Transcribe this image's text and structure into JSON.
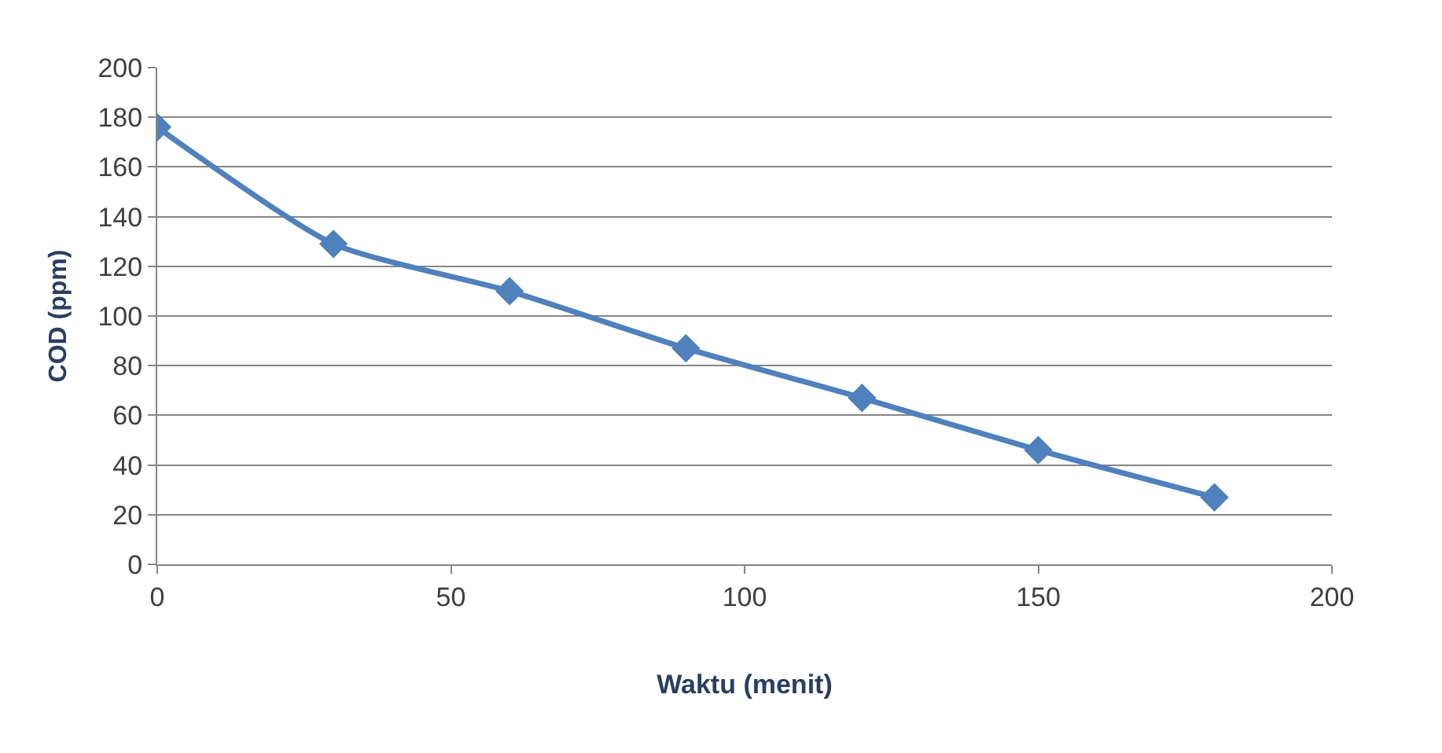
{
  "chart_data": {
    "type": "line",
    "xlabel": "Waktu (menit)",
    "ylabel": "COD (ppm)",
    "x": [
      0,
      30,
      60,
      90,
      120,
      150,
      180
    ],
    "series": [
      {
        "color": "#4f81bd",
        "values": [
          176,
          129,
          110,
          87,
          67,
          46,
          27
        ]
      }
    ],
    "xlim": [
      0,
      200
    ],
    "xticks": [
      0,
      50,
      100,
      150,
      200
    ],
    "ylim": [
      0,
      200
    ],
    "yticks": [
      0,
      20,
      40,
      60,
      80,
      100,
      120,
      140,
      160,
      180,
      200
    ],
    "grid": "y",
    "marker": "diamond",
    "line_style": "solid",
    "legend": false
  }
}
